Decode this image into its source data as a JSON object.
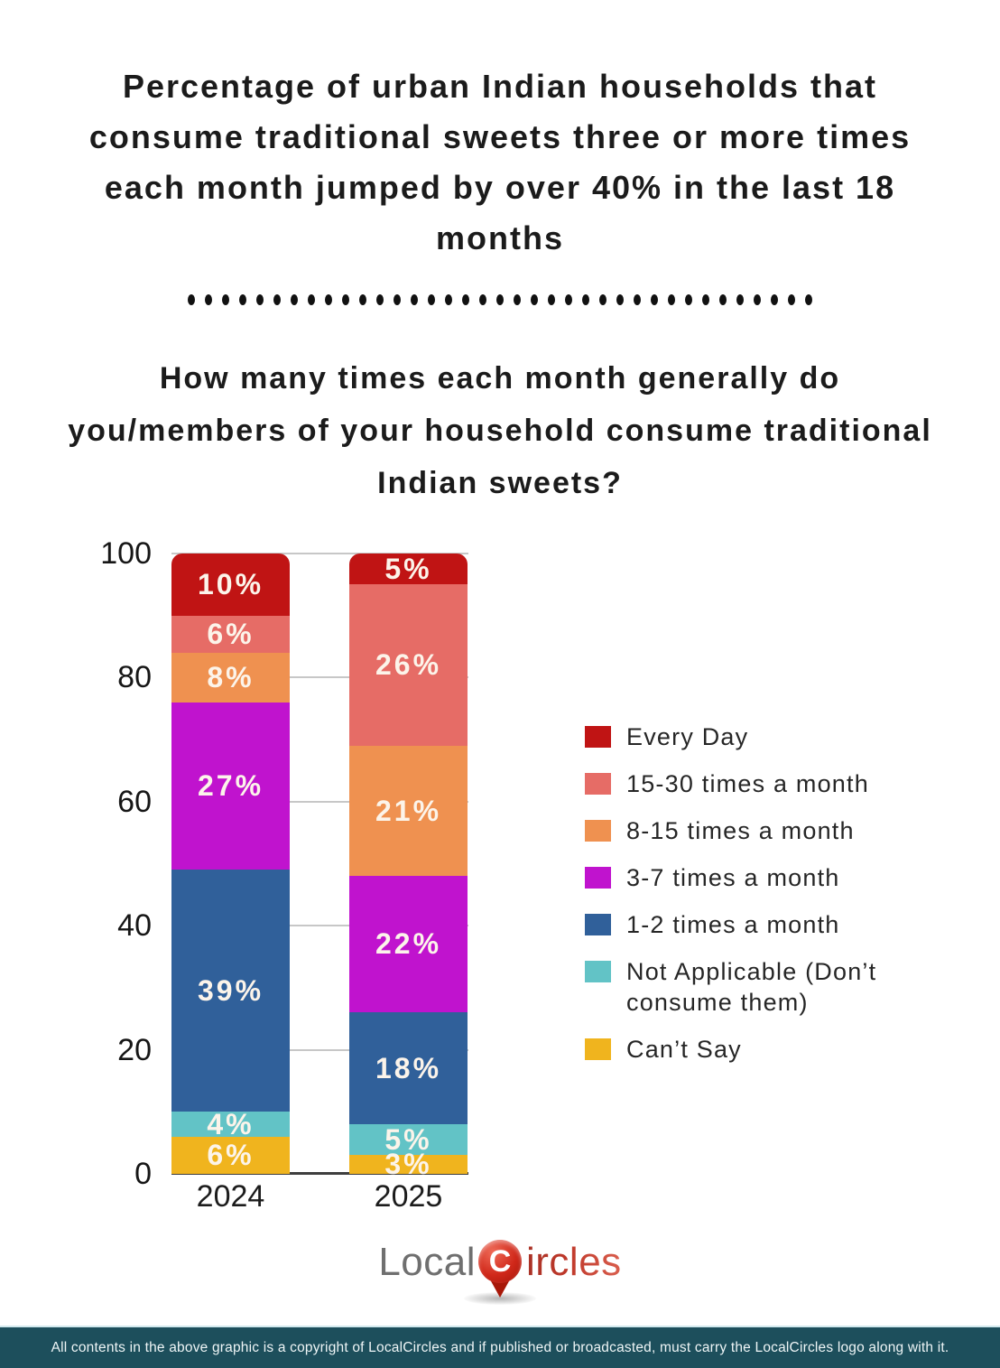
{
  "header": {
    "title_lines": [
      "Percentage of urban Indian households that",
      "consume traditional sweets three or more times",
      "each month jumped by over 40% in the last 18",
      "months"
    ],
    "separator_dots": 37,
    "question_lines": [
      "How many times each month generally do",
      "you/members of your household consume traditional",
      "Indian sweets?"
    ]
  },
  "chart_data": {
    "type": "bar",
    "stacked": true,
    "categories": [
      "2024",
      "2025"
    ],
    "series": [
      {
        "name": "Every Day",
        "color": "#c01414",
        "values": [
          10,
          5
        ]
      },
      {
        "name": "15-30 times a month",
        "color": "#e66c66",
        "values": [
          6,
          26
        ]
      },
      {
        "name": "8-15 times a month",
        "color": "#ef9150",
        "values": [
          8,
          21
        ]
      },
      {
        "name": "3-7 times a month",
        "color": "#c013ce",
        "values": [
          27,
          22
        ]
      },
      {
        "name": "1-2 times a month",
        "color": "#30609a",
        "values": [
          39,
          18
        ]
      },
      {
        "name": "Not Applicable (Don’t consume them)",
        "color": "#62c3c6",
        "values": [
          4,
          5
        ]
      },
      {
        "name": "Can’t Say",
        "color": "#f0b41e",
        "values": [
          6,
          3
        ]
      }
    ],
    "value_suffix": "%",
    "ylim": [
      0,
      100
    ],
    "yticks": [
      0,
      20,
      40,
      60,
      80,
      100
    ],
    "grid": true,
    "legend_position": "right",
    "bar_label_color": "#fcf4ea",
    "gridline_color": "#c7c7c7"
  },
  "logo": {
    "text_gray": "Local",
    "icon_letter": "C",
    "text_red": "ircles"
  },
  "footer": {
    "text": "All contents in the above graphic is a copyright of LocalCircles and if published or broadcasted, must carry the LocalCircles logo along with it."
  }
}
